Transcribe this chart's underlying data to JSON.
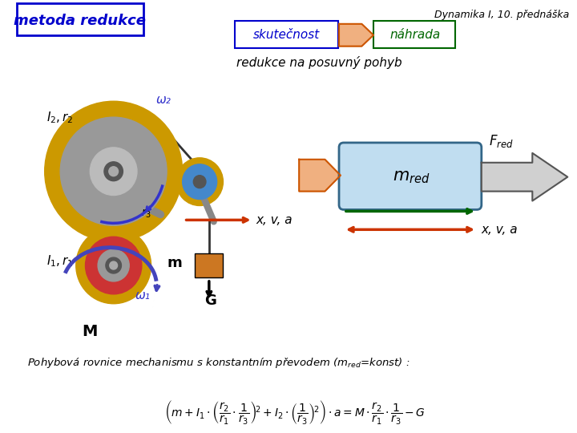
{
  "bg_color": "#ffffff",
  "title_text": "Dynamika I, 10. přednáška",
  "title_color": "#000000",
  "metoda_text": "metoda redukce",
  "metoda_color": "#0000cc",
  "metoda_bg": "#ffffff",
  "metoda_border": "#0000cc",
  "skutecnost_text": "skutečnost",
  "skutecnost_color": "#0000cc",
  "skutecnost_border": "#0000cc",
  "nahrada_text": "náhrada",
  "nahrada_color": "#006600",
  "nahrada_border": "#006600",
  "redukce_text": "redukce na posuvný pohyb",
  "orange_color": "#cc5500",
  "orange_fill": "#f0b080",
  "green_color": "#006600",
  "red_arrow_color": "#cc3300",
  "blue_color": "#3333cc",
  "gear_gold": "#cc9900",
  "gear_gray": "#999999",
  "gear_dark": "#555555",
  "mred_fill": "#c0ddf0",
  "mred_border": "#336688"
}
